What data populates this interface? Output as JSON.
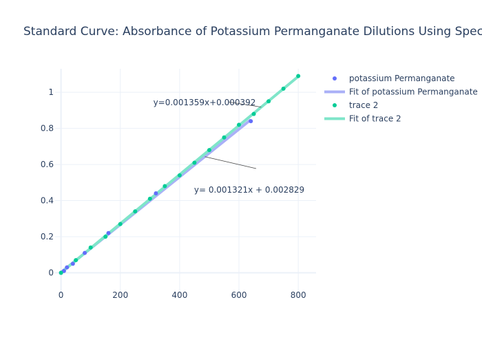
{
  "chart_data": {
    "type": "scatter",
    "title": "Standard Curve: Absorbance of Potassium Permanganate Dilutions Using Spectrophotometer",
    "xlabel": "",
    "ylabel": "",
    "xlim": [
      -20,
      860
    ],
    "ylim": [
      -0.12,
      1.13
    ],
    "x_ticks": [
      0,
      200,
      400,
      600,
      800
    ],
    "y_ticks": [
      0,
      0.2,
      0.4,
      0.6,
      0.8,
      1
    ],
    "grid": true,
    "legend_position": "top-right",
    "series": [
      {
        "name": "potassium Permanganate",
        "mode": "markers",
        "color": "#636efa",
        "x": [
          0,
          10,
          20,
          40,
          80,
          160,
          320,
          640
        ],
        "y": [
          0.0,
          0.01,
          0.03,
          0.05,
          0.11,
          0.22,
          0.44,
          0.84
        ]
      },
      {
        "name": "Fit of potassium Permanganate",
        "mode": "lines",
        "color": "#aab0f7",
        "x": [
          0,
          640
        ],
        "y": [
          0.002829,
          0.848269
        ]
      },
      {
        "name": "trace 2",
        "mode": "markers",
        "color": "#00cc96",
        "x": [
          0,
          50,
          100,
          150,
          200,
          250,
          300,
          350,
          400,
          450,
          500,
          550,
          600,
          650,
          700,
          750,
          800
        ],
        "y": [
          0.0,
          0.07,
          0.14,
          0.2,
          0.27,
          0.34,
          0.41,
          0.48,
          0.54,
          0.61,
          0.68,
          0.75,
          0.82,
          0.88,
          0.95,
          1.02,
          1.09
        ]
      },
      {
        "name": "Fit of trace 2",
        "mode": "lines",
        "color": "#7fe5c9",
        "x": [
          0,
          800
        ],
        "y": [
          0.000392,
          1.087592
        ]
      }
    ],
    "annotations": [
      {
        "text": "y=0.001359x+0.000392",
        "x": 675,
        "y": 0.918
      },
      {
        "text": "y= 0.001321x + 0.002829",
        "x": 485,
        "y": 0.643
      }
    ]
  }
}
